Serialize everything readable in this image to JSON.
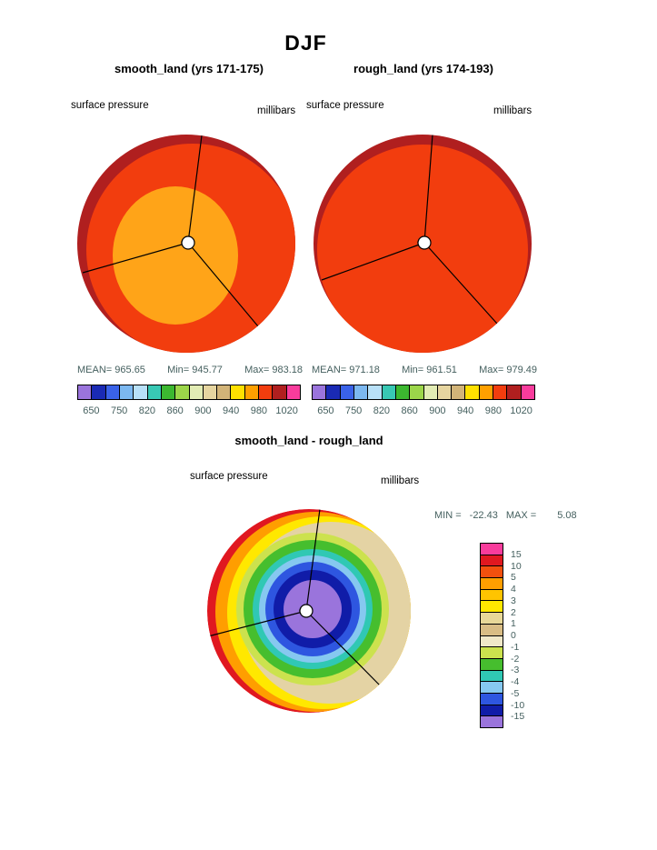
{
  "page": {
    "title": "DJF"
  },
  "stats_labels": {
    "mean": "MEAN=",
    "min": "Min=",
    "max": "Max=",
    "diff_min": "MIN =",
    "diff_max": "MAX ="
  },
  "map_colors": {
    "field_main": "#f23d0e",
    "rim_dark": "#b01f1f",
    "low_cell": "#ffa418",
    "diff_red": "#e01820",
    "diff_orange": "#ff9e00",
    "diff_yellow": "#ffe800",
    "diff_beige": "#e4d3a4",
    "ring_pale_green": "#cce24e",
    "ring_green": "#46be2e",
    "ring_teal": "#30c8b4",
    "ring_light_blue": "#86c8f0",
    "ring_blue": "#2e56e0",
    "ring_navy": "#101ca8",
    "ring_purple": "#9a74dc"
  },
  "chart_data": [
    {
      "type": "heatmap",
      "subtype": "polar-stereographic contour map",
      "season": "DJF",
      "title": "smooth_land (yrs 171-175)",
      "variable": "surface pressure",
      "units": "millibars",
      "stats": {
        "mean": 965.65,
        "min": 945.77,
        "max": 983.18
      },
      "contour_levels": [
        650,
        750,
        820,
        860,
        900,
        940,
        980,
        1020
      ],
      "palette": [
        "#9a74dc",
        "#1a2ab4",
        "#3a62e8",
        "#7cb8f0",
        "#b8e0f8",
        "#38c8b4",
        "#3cb830",
        "#9cd64a",
        "#e2ecb4",
        "#e6d5a0",
        "#d2b478",
        "#ffe000",
        "#ffa000",
        "#f23d0e",
        "#b01f1f",
        "#f83c9c"
      ],
      "legend_position": "bottom"
    },
    {
      "type": "heatmap",
      "subtype": "polar-stereographic contour map",
      "season": "DJF",
      "title": "rough_land (yrs 174-193)",
      "variable": "surface pressure",
      "units": "millibars",
      "stats": {
        "mean": 971.18,
        "min": 961.51,
        "max": 979.49
      },
      "contour_levels": [
        650,
        750,
        820,
        860,
        900,
        940,
        980,
        1020
      ],
      "palette": [
        "#9a74dc",
        "#1a2ab4",
        "#3a62e8",
        "#7cb8f0",
        "#b8e0f8",
        "#38c8b4",
        "#3cb830",
        "#9cd64a",
        "#e2ecb4",
        "#e6d5a0",
        "#d2b478",
        "#ffe000",
        "#ffa000",
        "#f23d0e",
        "#b01f1f",
        "#f83c9c"
      ],
      "legend_position": "bottom"
    },
    {
      "type": "heatmap",
      "subtype": "polar-stereographic contour map (difference)",
      "season": "DJF",
      "title": "smooth_land - rough_land",
      "variable": "surface pressure",
      "units": "millibars",
      "stats": {
        "min": -22.43,
        "max": 5.08
      },
      "contour_levels": [
        15,
        10,
        5,
        4,
        3,
        2,
        1,
        0,
        -1,
        -2,
        -3,
        -4,
        -5,
        -10,
        -15
      ],
      "palette": [
        "#f83c9c",
        "#e01820",
        "#f2500e",
        "#ff9e00",
        "#ffc400",
        "#ffe800",
        "#e8d898",
        "#d9bd85",
        "#f0e8c8",
        "#cce24e",
        "#46be2e",
        "#30c8b4",
        "#86c8f0",
        "#2e56e0",
        "#101ca8",
        "#9a74dc"
      ],
      "legend_position": "right"
    }
  ]
}
